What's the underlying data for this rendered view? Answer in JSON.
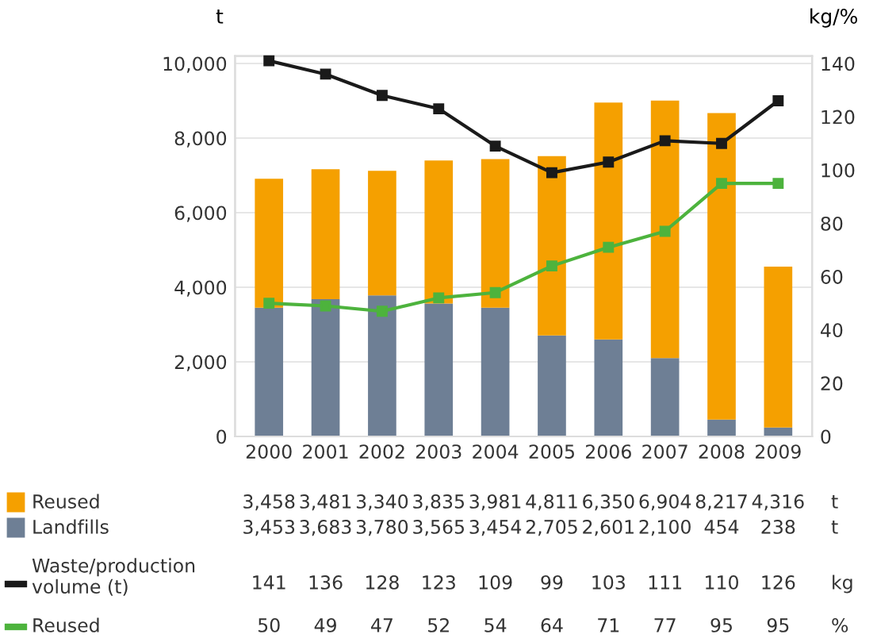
{
  "chart_data": {
    "type": "bar",
    "stacked": true,
    "legend": "bottom",
    "grid": "y",
    "marker": "square",
    "ylabel": "t",
    "y2label": "kg/%",
    "categories": [
      "2000",
      "2001",
      "2002",
      "2003",
      "2004",
      "2005",
      "2006",
      "2007",
      "2008",
      "2009"
    ],
    "series": [
      {
        "name": "Landfills",
        "color": "#6e7f95",
        "values": [
          3453,
          3683,
          3780,
          3565,
          3454,
          2705,
          2601,
          2100,
          454,
          238
        ],
        "value_labels": [
          "3,453",
          "3,683",
          "3,780",
          "3,565",
          "3,454",
          "2,705",
          "2,601",
          "2,100",
          "454",
          "238"
        ]
      },
      {
        "name": "Reused",
        "color": "#f5a000",
        "values": [
          3458,
          3481,
          3340,
          3835,
          3981,
          4811,
          6350,
          6904,
          8217,
          4316
        ],
        "value_labels": [
          "3,458",
          "3,481",
          "3,340",
          "3,835",
          "3,981",
          "4,811",
          "6,350",
          "6,904",
          "8,217",
          "4,316"
        ]
      },
      {
        "name": "Waste/production\nvolume (t)",
        "type": "line",
        "axis": "y2",
        "color": "#1a1a1a",
        "values": [
          141,
          136,
          128,
          123,
          109,
          99,
          103,
          111,
          110,
          126
        ],
        "value_labels": [
          "141",
          "136",
          "128",
          "123",
          "109",
          "99",
          "103",
          "111",
          "110",
          "126"
        ]
      },
      {
        "name": "Reused",
        "type": "line",
        "axis": "y2",
        "color": "#4db33d",
        "values": [
          50,
          49,
          47,
          52,
          54,
          64,
          71,
          77,
          95,
          95
        ],
        "value_labels": [
          "50",
          "49",
          "47",
          "52",
          "54",
          "64",
          "71",
          "77",
          "95",
          "95"
        ]
      }
    ],
    "annotations": [
      "t",
      "t",
      "kg",
      "%"
    ],
    "ylim": [
      0,
      10200
    ],
    "yticks": [
      0,
      {
        "value": 2000,
        "label": "2,000"
      },
      {
        "value": 4000,
        "label": "4,000"
      },
      {
        "value": 6000,
        "label": "6,000"
      },
      {
        "value": 8000,
        "label": "8,000"
      },
      {
        "value": 10000,
        "label": "10,000"
      }
    ],
    "y2lim": [
      0,
      142.8
    ],
    "y2ticks": [
      0,
      20,
      40,
      60,
      80,
      100,
      120,
      140
    ]
  }
}
